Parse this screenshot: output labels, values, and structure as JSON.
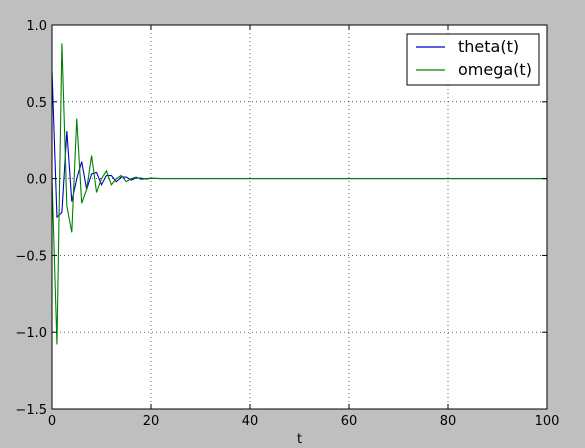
{
  "chart_data": {
    "type": "line",
    "title": "",
    "xlabel": "t",
    "ylabel": "",
    "xlim": [
      0,
      100
    ],
    "ylim": [
      -1.5,
      1.0
    ],
    "x_ticks": [
      0,
      20,
      40,
      60,
      80,
      100
    ],
    "y_ticks": [
      -1.5,
      -1.0,
      -0.5,
      0.0,
      0.5,
      1.0
    ],
    "x_tick_labels": [
      "0",
      "20",
      "40",
      "60",
      "80",
      "100"
    ],
    "y_tick_labels": [
      "−1.5",
      "−1.0",
      "−0.5",
      "0.0",
      "0.5",
      "1.0"
    ],
    "grid": true,
    "legend_position": "top-right",
    "series": [
      {
        "name": "theta(t)",
        "color": "#0000cc",
        "x": [
          0,
          1,
          2,
          3,
          4,
          5,
          6,
          7,
          8,
          9,
          10,
          11,
          12,
          13,
          14,
          15,
          16,
          17,
          18,
          19,
          20,
          22,
          25,
          30,
          40,
          50,
          60,
          70,
          80,
          90,
          100
        ],
        "y": [
          0.7,
          -0.25,
          -0.22,
          0.31,
          -0.15,
          0.0,
          0.11,
          -0.07,
          0.03,
          0.04,
          -0.04,
          0.02,
          0.02,
          -0.02,
          0.01,
          0.01,
          -0.01,
          0.005,
          0.003,
          -0.003,
          0.002,
          0.0,
          0.0,
          0.0,
          0.0,
          0.0,
          0.0,
          0.0,
          0.0,
          0.0,
          0.0
        ]
      },
      {
        "name": "omega(t)",
        "color": "#008000",
        "x": [
          0,
          1,
          2,
          3,
          4,
          5,
          6,
          7,
          8,
          9,
          10,
          11,
          12,
          13,
          14,
          15,
          16,
          17,
          18,
          19,
          20,
          22,
          25,
          30,
          40,
          50,
          60,
          70,
          80,
          90,
          100
        ],
        "y": [
          0.0,
          -1.08,
          0.88,
          -0.18,
          -0.35,
          0.39,
          -0.16,
          -0.07,
          0.15,
          -0.09,
          0.0,
          0.05,
          -0.04,
          0.0,
          0.02,
          -0.02,
          0.0,
          0.01,
          -0.005,
          0.0,
          0.003,
          0.0,
          0.0,
          0.0,
          0.0,
          0.0,
          0.0,
          0.0,
          0.0,
          0.0,
          0.0
        ]
      }
    ]
  }
}
